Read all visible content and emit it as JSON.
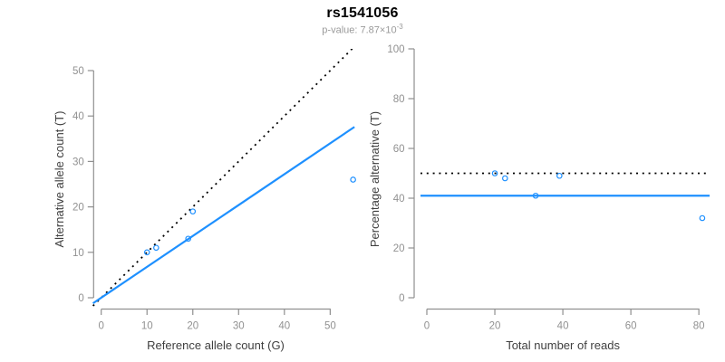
{
  "header": {
    "title": "rs1541056",
    "pvalue_label": "p-value: 7.87×10",
    "pvalue_exponent": "-3"
  },
  "colors": {
    "accent_blue": "#1e90ff",
    "line_black": "#000000",
    "axis_gray": "#8f8f8f",
    "tick_label_gray": "#919191",
    "axis_title_gray": "#3f3f3f",
    "subtitle_gray": "#9a9a9a"
  },
  "chart_data": [
    {
      "id": "allele-counts",
      "type": "scatter",
      "xlabel": "Reference allele count (G)",
      "ylabel": "Alternative allele count (T)",
      "xticks": [
        0,
        10,
        20,
        30,
        40,
        50
      ],
      "yticks": [
        0,
        10,
        20,
        30,
        40,
        50
      ],
      "xlim": [
        0,
        55
      ],
      "ylim": [
        0,
        55
      ],
      "points": [
        [
          10,
          10
        ],
        [
          12,
          11
        ],
        [
          19,
          13
        ],
        [
          20,
          19
        ],
        [
          55,
          26
        ]
      ],
      "ablines": [
        {
          "name": "expected-50pct-line",
          "slope": 1,
          "intercept": 0,
          "style": "dotted",
          "color": "#000000"
        },
        {
          "name": "fitted-ratio-line",
          "slope": 0.68,
          "intercept": 0,
          "style": "solid",
          "color": "#1e90ff"
        }
      ]
    },
    {
      "id": "percentage-vs-reads",
      "type": "scatter",
      "xlabel": "Total number of reads",
      "ylabel": "Percentage alternative (T)",
      "xticks": [
        0,
        20,
        40,
        60,
        80
      ],
      "yticks": [
        0,
        20,
        40,
        60,
        80,
        100
      ],
      "xlim": [
        0,
        83
      ],
      "ylim": [
        0,
        100
      ],
      "points": [
        [
          20,
          50
        ],
        [
          23,
          48
        ],
        [
          32,
          41
        ],
        [
          39,
          49
        ],
        [
          81,
          32
        ]
      ],
      "hlines": [
        {
          "name": "expected-50pct-line",
          "y": 50,
          "style": "dotted",
          "color": "#000000"
        },
        {
          "name": "fitted-percentage-line",
          "y": 41,
          "style": "solid",
          "color": "#1e90ff"
        }
      ]
    }
  ]
}
